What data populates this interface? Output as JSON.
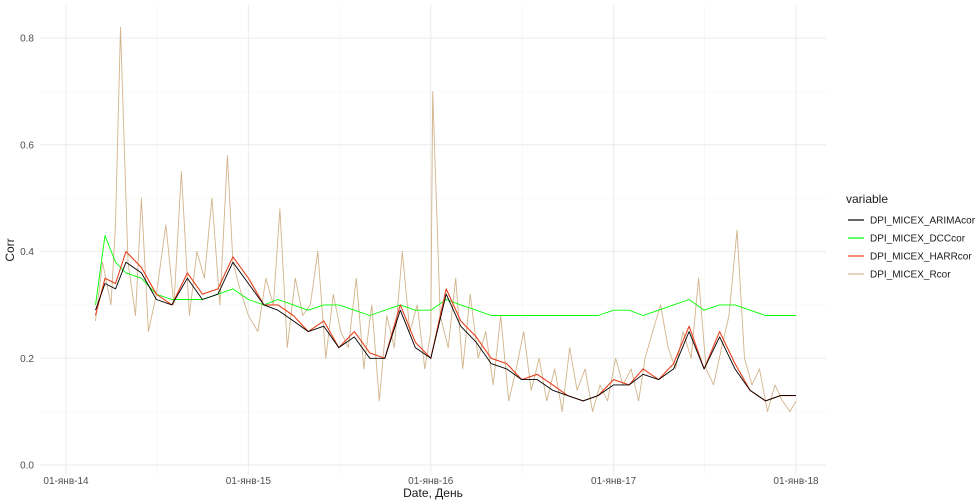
{
  "chart_data": {
    "type": "line",
    "xlabel": "Date, День",
    "ylabel": "Corr",
    "x_ticks": [
      "01-янв-14",
      "01-янв-15",
      "01-янв-16",
      "01-янв-17",
      "01-янв-18"
    ],
    "y_ticks": [
      "0.0",
      "0.2",
      "0.4",
      "0.6",
      "0.8"
    ],
    "ylim": [
      0,
      0.82
    ],
    "xlim": [
      "2014-01-01",
      "2018-01-01"
    ],
    "grid": true,
    "legend": {
      "title": "variable",
      "position": "right"
    },
    "series": [
      {
        "name": "DPI_MICEX_Rcor",
        "color": "#d2b48c",
        "x": [
          "2014-03-01",
          "2014-03-15",
          "2014-04-01",
          "2014-04-10",
          "2014-04-20",
          "2014-05-05",
          "2014-05-20",
          "2014-06-01",
          "2014-06-15",
          "2014-07-01",
          "2014-07-20",
          "2014-08-05",
          "2014-08-20",
          "2014-09-05",
          "2014-09-20",
          "2014-10-05",
          "2014-10-20",
          "2014-11-05",
          "2014-11-20",
          "2014-12-01",
          "2014-12-15",
          "2015-01-01",
          "2015-01-20",
          "2015-02-05",
          "2015-02-20",
          "2015-03-05",
          "2015-03-20",
          "2015-04-05",
          "2015-04-20",
          "2015-05-05",
          "2015-05-20",
          "2015-06-05",
          "2015-06-20",
          "2015-07-05",
          "2015-07-20",
          "2015-08-05",
          "2015-08-20",
          "2015-09-05",
          "2015-09-20",
          "2015-10-05",
          "2015-10-20",
          "2015-11-05",
          "2015-11-20",
          "2015-12-05",
          "2015-12-20",
          "2016-01-01",
          "2016-01-05",
          "2016-01-20",
          "2016-02-05",
          "2016-02-20",
          "2016-03-05",
          "2016-03-20",
          "2016-04-05",
          "2016-04-20",
          "2016-05-05",
          "2016-05-20",
          "2016-06-05",
          "2016-06-20",
          "2016-07-05",
          "2016-07-20",
          "2016-08-05",
          "2016-08-20",
          "2016-09-05",
          "2016-09-20",
          "2016-10-05",
          "2016-10-20",
          "2016-11-05",
          "2016-11-20",
          "2016-12-05",
          "2016-12-20",
          "2017-01-05",
          "2017-01-20",
          "2017-02-05",
          "2017-02-20",
          "2017-03-05",
          "2017-03-20",
          "2017-04-05",
          "2017-04-20",
          "2017-05-05",
          "2017-05-20",
          "2017-06-05",
          "2017-06-20",
          "2017-07-05",
          "2017-07-20",
          "2017-08-05",
          "2017-08-20",
          "2017-09-05",
          "2017-09-20",
          "2017-10-05",
          "2017-10-20",
          "2017-11-05",
          "2017-11-20",
          "2017-12-05",
          "2017-12-20",
          "2018-01-01"
        ],
        "values": [
          0.27,
          0.38,
          0.3,
          0.45,
          0.82,
          0.38,
          0.28,
          0.5,
          0.25,
          0.32,
          0.45,
          0.3,
          0.55,
          0.28,
          0.4,
          0.35,
          0.5,
          0.3,
          0.58,
          0.38,
          0.33,
          0.28,
          0.25,
          0.35,
          0.3,
          0.48,
          0.22,
          0.35,
          0.28,
          0.3,
          0.4,
          0.2,
          0.32,
          0.25,
          0.22,
          0.35,
          0.18,
          0.3,
          0.12,
          0.28,
          0.22,
          0.4,
          0.25,
          0.3,
          0.18,
          0.25,
          0.7,
          0.28,
          0.22,
          0.35,
          0.18,
          0.32,
          0.2,
          0.25,
          0.15,
          0.28,
          0.12,
          0.18,
          0.25,
          0.14,
          0.2,
          0.12,
          0.18,
          0.1,
          0.22,
          0.14,
          0.18,
          0.1,
          0.15,
          0.12,
          0.2,
          0.15,
          0.18,
          0.12,
          0.2,
          0.25,
          0.3,
          0.22,
          0.18,
          0.25,
          0.2,
          0.35,
          0.18,
          0.15,
          0.22,
          0.28,
          0.44,
          0.2,
          0.15,
          0.18,
          0.1,
          0.15,
          0.12,
          0.1,
          0.12
        ]
      },
      {
        "name": "DPI_MICEX_DCCcor",
        "color": "#00ff00",
        "x": [
          "2014-03-01",
          "2014-03-20",
          "2014-04-10",
          "2014-05-01",
          "2014-06-01",
          "2014-07-01",
          "2014-08-01",
          "2014-09-01",
          "2014-10-01",
          "2014-11-01",
          "2014-12-01",
          "2015-01-01",
          "2015-02-01",
          "2015-03-01",
          "2015-04-01",
          "2015-05-01",
          "2015-06-01",
          "2015-07-01",
          "2015-08-01",
          "2015-09-01",
          "2015-10-01",
          "2015-11-01",
          "2015-12-01",
          "2016-01-01",
          "2016-02-01",
          "2016-03-01",
          "2016-04-01",
          "2016-05-01",
          "2016-06-01",
          "2016-07-01",
          "2016-08-01",
          "2016-09-01",
          "2016-10-01",
          "2016-11-01",
          "2016-12-01",
          "2017-01-01",
          "2017-02-01",
          "2017-03-01",
          "2017-04-01",
          "2017-05-01",
          "2017-06-01",
          "2017-07-01",
          "2017-08-01",
          "2017-09-01",
          "2017-10-01",
          "2017-11-01",
          "2017-12-01",
          "2018-01-01"
        ],
        "values": [
          0.3,
          0.43,
          0.38,
          0.36,
          0.35,
          0.32,
          0.31,
          0.31,
          0.31,
          0.32,
          0.33,
          0.31,
          0.3,
          0.31,
          0.3,
          0.29,
          0.3,
          0.3,
          0.29,
          0.28,
          0.29,
          0.3,
          0.29,
          0.29,
          0.31,
          0.3,
          0.29,
          0.28,
          0.28,
          0.28,
          0.28,
          0.28,
          0.28,
          0.28,
          0.28,
          0.29,
          0.29,
          0.28,
          0.29,
          0.3,
          0.31,
          0.29,
          0.3,
          0.3,
          0.29,
          0.28,
          0.28,
          0.28
        ]
      },
      {
        "name": "DPI_MICEX_HARRcor",
        "color": "#e8401c",
        "x": [
          "2014-03-01",
          "2014-03-20",
          "2014-04-10",
          "2014-05-01",
          "2014-06-01",
          "2014-07-01",
          "2014-08-01",
          "2014-09-01",
          "2014-10-01",
          "2014-11-01",
          "2014-12-01",
          "2015-01-01",
          "2015-02-01",
          "2015-03-01",
          "2015-04-01",
          "2015-05-01",
          "2015-06-01",
          "2015-07-01",
          "2015-08-01",
          "2015-09-01",
          "2015-10-01",
          "2015-11-01",
          "2015-12-01",
          "2016-01-01",
          "2016-02-01",
          "2016-03-01",
          "2016-04-01",
          "2016-05-01",
          "2016-06-01",
          "2016-07-01",
          "2016-08-01",
          "2016-09-01",
          "2016-10-01",
          "2016-11-01",
          "2016-12-01",
          "2017-01-01",
          "2017-02-01",
          "2017-03-01",
          "2017-04-01",
          "2017-05-01",
          "2017-06-01",
          "2017-07-01",
          "2017-08-01",
          "2017-09-01",
          "2017-10-01",
          "2017-11-01",
          "2017-12-01",
          "2018-01-01"
        ],
        "values": [
          0.28,
          0.35,
          0.34,
          0.4,
          0.37,
          0.32,
          0.3,
          0.36,
          0.32,
          0.33,
          0.39,
          0.35,
          0.3,
          0.3,
          0.28,
          0.25,
          0.27,
          0.22,
          0.25,
          0.21,
          0.2,
          0.3,
          0.23,
          0.2,
          0.33,
          0.27,
          0.24,
          0.2,
          0.19,
          0.16,
          0.17,
          0.15,
          0.13,
          0.12,
          0.13,
          0.16,
          0.15,
          0.18,
          0.16,
          0.19,
          0.26,
          0.18,
          0.25,
          0.19,
          0.14,
          0.12,
          0.13,
          0.13
        ]
      },
      {
        "name": "DPI_MICEX_ARIMAcor",
        "color": "#000000",
        "x": [
          "2014-03-01",
          "2014-03-20",
          "2014-04-10",
          "2014-05-01",
          "2014-06-01",
          "2014-07-01",
          "2014-08-01",
          "2014-09-01",
          "2014-10-01",
          "2014-11-01",
          "2014-12-01",
          "2015-01-01",
          "2015-02-01",
          "2015-03-01",
          "2015-04-01",
          "2015-05-01",
          "2015-06-01",
          "2015-07-01",
          "2015-08-01",
          "2015-09-01",
          "2015-10-01",
          "2015-11-01",
          "2015-12-01",
          "2016-01-01",
          "2016-02-01",
          "2016-03-01",
          "2016-04-01",
          "2016-05-01",
          "2016-06-01",
          "2016-07-01",
          "2016-08-01",
          "2016-09-01",
          "2016-10-01",
          "2016-11-01",
          "2016-12-01",
          "2017-01-01",
          "2017-02-01",
          "2017-03-01",
          "2017-04-01",
          "2017-05-01",
          "2017-06-01",
          "2017-07-01",
          "2017-08-01",
          "2017-09-01",
          "2017-10-01",
          "2017-11-01",
          "2017-12-01",
          "2018-01-01"
        ],
        "values": [
          0.29,
          0.34,
          0.33,
          0.38,
          0.36,
          0.31,
          0.3,
          0.35,
          0.31,
          0.32,
          0.38,
          0.34,
          0.3,
          0.29,
          0.27,
          0.25,
          0.26,
          0.22,
          0.24,
          0.2,
          0.2,
          0.29,
          0.22,
          0.2,
          0.32,
          0.26,
          0.23,
          0.19,
          0.18,
          0.16,
          0.16,
          0.14,
          0.13,
          0.12,
          0.13,
          0.15,
          0.15,
          0.17,
          0.16,
          0.18,
          0.25,
          0.18,
          0.24,
          0.18,
          0.14,
          0.12,
          0.13,
          0.13
        ]
      }
    ]
  }
}
